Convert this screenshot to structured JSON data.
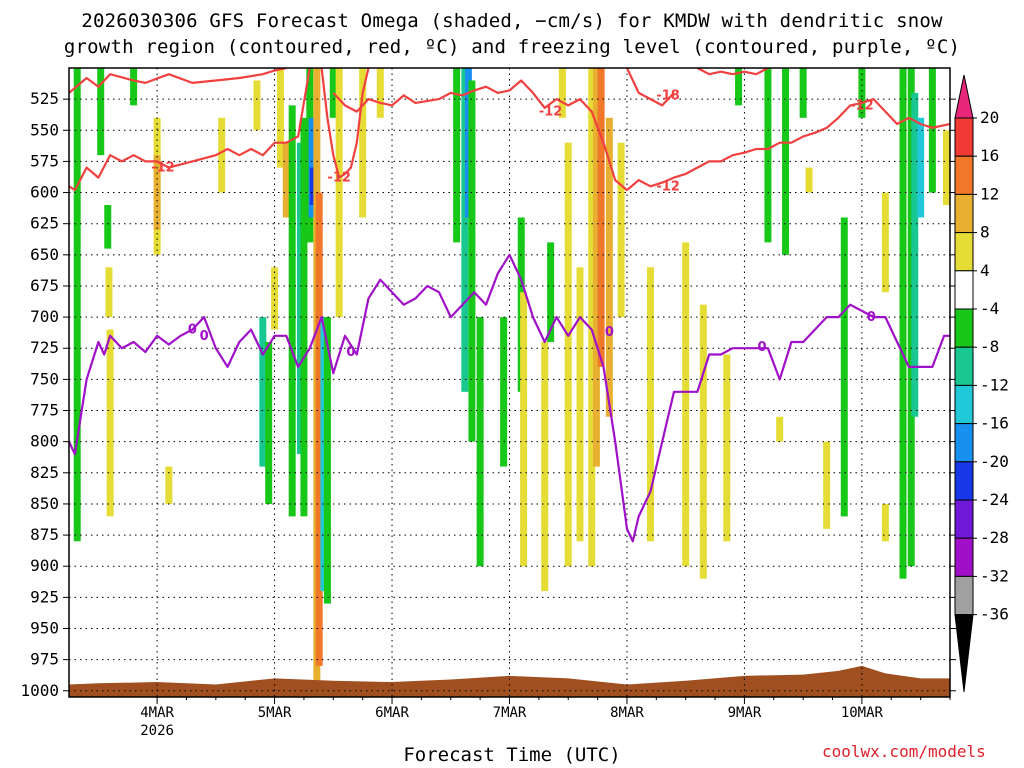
{
  "title_line1": "2026030306 GFS Forecast Omega (shaded, −cm/s) for KMDW with dendritic snow",
  "title_line2": "growth region (contoured, red, ºC) and freezing level (contoured, purple, ºC)",
  "x_axis_title": "Forecast Time (UTC)",
  "credit": "coolwx.com/models",
  "chart_data": {
    "type": "heatmap",
    "title": "2026030306 GFS Forecast Omega (shaded, −cm/s) for KMDW with dendritic snow growth region (contoured, red, ºC) and freezing level (contoured, purple, ºC)",
    "xlabel": "Forecast Time (UTC)",
    "ylabel": "",
    "x_ticks": [
      "4MAR",
      "5MAR",
      "6MAR",
      "7MAR",
      "8MAR",
      "9MAR",
      "10MAR"
    ],
    "x_tick_sublabels": {
      "4MAR": "2026"
    },
    "x_range_days": [
      3.25,
      10.75
    ],
    "y_ticks": [
      525,
      550,
      575,
      600,
      625,
      650,
      675,
      700,
      725,
      750,
      775,
      800,
      825,
      850,
      875,
      900,
      925,
      950,
      975,
      1000
    ],
    "y_range_hpa": [
      500,
      1005
    ],
    "y_reversed": true,
    "grid": true,
    "colorbar": {
      "levels": [
        20,
        16,
        12,
        8,
        4,
        -4,
        -8,
        -12,
        -16,
        -20,
        -24,
        -28,
        -32,
        -36
      ],
      "colors": [
        "#e8267a",
        "#f23a35",
        "#f07828",
        "#e8b030",
        "#e6dc36",
        "#ffffff",
        "#18c818",
        "#18c890",
        "#20c8d8",
        "#1890f0",
        "#1838e8",
        "#7018d8",
        "#a010c8",
        "#a0a0a0",
        "#000000"
      ]
    },
    "omega_cells": [
      {
        "t": 3.32,
        "p0": 500,
        "p1": 880,
        "c": "#18c818"
      },
      {
        "t": 3.52,
        "p0": 500,
        "p1": 570,
        "c": "#18c818"
      },
      {
        "t": 3.58,
        "p0": 610,
        "p1": 645,
        "c": "#18c818"
      },
      {
        "t": 3.59,
        "p0": 660,
        "p1": 700,
        "c": "#e6dc36"
      },
      {
        "t": 3.6,
        "p0": 710,
        "p1": 860,
        "c": "#e6dc36"
      },
      {
        "t": 3.8,
        "p0": 500,
        "p1": 530,
        "c": "#18c818"
      },
      {
        "t": 4.0,
        "p0": 540,
        "p1": 650,
        "c": "#e6dc36"
      },
      {
        "t": 4.0,
        "p0": 570,
        "p1": 630,
        "c": "#e8b030"
      },
      {
        "t": 4.1,
        "p0": 820,
        "p1": 850,
        "c": "#e6dc36"
      },
      {
        "t": 4.55,
        "p0": 540,
        "p1": 600,
        "c": "#e6dc36"
      },
      {
        "t": 4.85,
        "p0": 510,
        "p1": 550,
        "c": "#e6dc36"
      },
      {
        "t": 4.9,
        "p0": 700,
        "p1": 820,
        "c": "#18c890"
      },
      {
        "t": 4.95,
        "p0": 720,
        "p1": 850,
        "c": "#18c818"
      },
      {
        "t": 5.0,
        "p0": 660,
        "p1": 710,
        "c": "#e6dc36"
      },
      {
        "t": 5.05,
        "p0": 500,
        "p1": 580,
        "c": "#e6dc36"
      },
      {
        "t": 5.1,
        "p0": 560,
        "p1": 620,
        "c": "#e8b030"
      },
      {
        "t": 5.15,
        "p0": 530,
        "p1": 860,
        "c": "#18c818"
      },
      {
        "t": 5.22,
        "p0": 560,
        "p1": 810,
        "c": "#18c890"
      },
      {
        "t": 5.25,
        "p0": 540,
        "p1": 860,
        "c": "#18c818"
      },
      {
        "t": 5.3,
        "p0": 500,
        "p1": 640,
        "c": "#18c818"
      },
      {
        "t": 5.32,
        "p0": 540,
        "p1": 620,
        "c": "#1890f0"
      },
      {
        "t": 5.33,
        "p0": 580,
        "p1": 610,
        "c": "#1838e8"
      },
      {
        "t": 5.36,
        "p0": 500,
        "p1": 1000,
        "c": "#e8b030"
      },
      {
        "t": 5.38,
        "p0": 600,
        "p1": 980,
        "c": "#f07828"
      },
      {
        "t": 5.42,
        "p0": 700,
        "p1": 920,
        "c": "#20c8d8"
      },
      {
        "t": 5.45,
        "p0": 700,
        "p1": 930,
        "c": "#18c818"
      },
      {
        "t": 5.5,
        "p0": 500,
        "p1": 540,
        "c": "#18c818"
      },
      {
        "t": 5.55,
        "p0": 500,
        "p1": 700,
        "c": "#e6dc36"
      },
      {
        "t": 5.75,
        "p0": 500,
        "p1": 620,
        "c": "#e6dc36"
      },
      {
        "t": 5.9,
        "p0": 500,
        "p1": 540,
        "c": "#e6dc36"
      },
      {
        "t": 6.55,
        "p0": 500,
        "p1": 640,
        "c": "#18c818"
      },
      {
        "t": 6.62,
        "p0": 500,
        "p1": 760,
        "c": "#18c890"
      },
      {
        "t": 6.65,
        "p0": 500,
        "p1": 620,
        "c": "#1890f0"
      },
      {
        "t": 6.68,
        "p0": 510,
        "p1": 800,
        "c": "#18c818"
      },
      {
        "t": 6.75,
        "p0": 700,
        "p1": 900,
        "c": "#18c818"
      },
      {
        "t": 6.95,
        "p0": 700,
        "p1": 820,
        "c": "#18c818"
      },
      {
        "t": 7.1,
        "p0": 620,
        "p1": 760,
        "c": "#18c818"
      },
      {
        "t": 7.12,
        "p0": 680,
        "p1": 900,
        "c": "#e6dc36"
      },
      {
        "t": 7.3,
        "p0": 720,
        "p1": 920,
        "c": "#e6dc36"
      },
      {
        "t": 7.35,
        "p0": 640,
        "p1": 720,
        "c": "#18c818"
      },
      {
        "t": 7.45,
        "p0": 500,
        "p1": 540,
        "c": "#e6dc36"
      },
      {
        "t": 7.5,
        "p0": 560,
        "p1": 900,
        "c": "#e6dc36"
      },
      {
        "t": 7.6,
        "p0": 660,
        "p1": 880,
        "c": "#e6dc36"
      },
      {
        "t": 7.7,
        "p0": 500,
        "p1": 900,
        "c": "#e6dc36"
      },
      {
        "t": 7.74,
        "p0": 500,
        "p1": 820,
        "c": "#e8b030"
      },
      {
        "t": 7.78,
        "p0": 500,
        "p1": 740,
        "c": "#f07828"
      },
      {
        "t": 7.85,
        "p0": 540,
        "p1": 780,
        "c": "#e8b030"
      },
      {
        "t": 7.95,
        "p0": 560,
        "p1": 700,
        "c": "#e6dc36"
      },
      {
        "t": 8.2,
        "p0": 660,
        "p1": 880,
        "c": "#e6dc36"
      },
      {
        "t": 8.5,
        "p0": 640,
        "p1": 900,
        "c": "#e6dc36"
      },
      {
        "t": 8.65,
        "p0": 690,
        "p1": 910,
        "c": "#e6dc36"
      },
      {
        "t": 8.85,
        "p0": 730,
        "p1": 880,
        "c": "#e6dc36"
      },
      {
        "t": 8.95,
        "p0": 500,
        "p1": 530,
        "c": "#18c818"
      },
      {
        "t": 9.2,
        "p0": 500,
        "p1": 640,
        "c": "#18c818"
      },
      {
        "t": 9.35,
        "p0": 500,
        "p1": 650,
        "c": "#18c818"
      },
      {
        "t": 9.5,
        "p0": 500,
        "p1": 540,
        "c": "#18c818"
      },
      {
        "t": 9.3,
        "p0": 780,
        "p1": 800,
        "c": "#e6dc36"
      },
      {
        "t": 9.55,
        "p0": 580,
        "p1": 600,
        "c": "#e6dc36"
      },
      {
        "t": 9.7,
        "p0": 800,
        "p1": 870,
        "c": "#e6dc36"
      },
      {
        "t": 9.85,
        "p0": 620,
        "p1": 860,
        "c": "#18c818"
      },
      {
        "t": 10.0,
        "p0": 500,
        "p1": 540,
        "c": "#18c818"
      },
      {
        "t": 10.2,
        "p0": 600,
        "p1": 680,
        "c": "#e6dc36"
      },
      {
        "t": 10.2,
        "p0": 850,
        "p1": 880,
        "c": "#e6dc36"
      },
      {
        "t": 10.35,
        "p0": 500,
        "p1": 910,
        "c": "#18c818"
      },
      {
        "t": 10.42,
        "p0": 500,
        "p1": 900,
        "c": "#18c818"
      },
      {
        "t": 10.45,
        "p0": 520,
        "p1": 780,
        "c": "#18c890"
      },
      {
        "t": 10.5,
        "p0": 540,
        "p1": 620,
        "c": "#20c8d8"
      },
      {
        "t": 10.6,
        "p0": 500,
        "p1": 600,
        "c": "#18c818"
      },
      {
        "t": 10.72,
        "p0": 550,
        "p1": 610,
        "c": "#e6dc36"
      }
    ],
    "series": [
      {
        "name": "-12",
        "color": "#f04040",
        "labels": [
          {
            "t": 4.05,
            "p": 580,
            "text": "-12"
          }
        ],
        "t": [
          3.25,
          3.3,
          3.4,
          3.5,
          3.6,
          3.7,
          3.8,
          3.9,
          4.0,
          4.1,
          4.3,
          4.5,
          4.6,
          4.7,
          4.8,
          4.9,
          5.0,
          5.1,
          5.2,
          5.3
        ],
        "p": [
          595,
          598,
          580,
          588,
          570,
          575,
          570,
          575,
          575,
          580,
          575,
          570,
          565,
          570,
          565,
          570,
          560,
          560,
          555,
          500
        ]
      },
      {
        "name": "-12",
        "color": "#f04040",
        "labels": [
          {
            "t": 5.55,
            "p": 588,
            "text": "-12"
          }
        ],
        "t": [
          5.4,
          5.45,
          5.5,
          5.55,
          5.6,
          5.65,
          5.7,
          5.75,
          5.8
        ],
        "p": [
          500,
          540,
          570,
          588,
          585,
          580,
          560,
          520,
          500
        ]
      },
      {
        "name": "-12",
        "color": "#f04040",
        "labels": [],
        "t": [
          3.25,
          3.4,
          3.5,
          3.6,
          3.8,
          3.9,
          4.1,
          4.3,
          4.5,
          4.7,
          4.9,
          5.0,
          5.1
        ],
        "p": [
          520,
          508,
          515,
          505,
          510,
          512,
          505,
          512,
          510,
          508,
          505,
          502,
          500
        ]
      },
      {
        "name": "-12",
        "color": "#f04040",
        "labels": [
          {
            "t": 7.35,
            "p": 535,
            "text": "-12"
          },
          {
            "t": 8.35,
            "p": 595,
            "text": "-12"
          },
          {
            "t": 10.0,
            "p": 530,
            "text": "-12"
          }
        ],
        "t": [
          5.5,
          5.6,
          5.7,
          5.8,
          5.9,
          6.0,
          6.1,
          6.2,
          6.4,
          6.5,
          6.6,
          6.7,
          6.8,
          6.9,
          7.0,
          7.1,
          7.2,
          7.3,
          7.4,
          7.5,
          7.6,
          7.7,
          7.8,
          7.9,
          8.0,
          8.1,
          8.2,
          8.3,
          8.4,
          8.5,
          8.6,
          8.7,
          8.8,
          8.9,
          9.0,
          9.1,
          9.2,
          9.3,
          9.4,
          9.5,
          9.6,
          9.7,
          9.8,
          9.9,
          10.0,
          10.1,
          10.2,
          10.3,
          10.4,
          10.5,
          10.6,
          10.75
        ],
        "p": [
          520,
          530,
          535,
          525,
          528,
          530,
          522,
          528,
          525,
          520,
          522,
          518,
          515,
          520,
          518,
          510,
          520,
          532,
          525,
          530,
          525,
          535,
          560,
          590,
          598,
          590,
          595,
          592,
          588,
          585,
          580,
          575,
          575,
          570,
          568,
          565,
          565,
          560,
          560,
          555,
          552,
          548,
          540,
          530,
          528,
          525,
          535,
          545,
          540,
          545,
          548,
          545
        ]
      },
      {
        "name": "-18",
        "color": "#f04040",
        "labels": [
          {
            "t": 8.35,
            "p": 522,
            "text": "-18"
          }
        ],
        "t": [
          8.0,
          8.1,
          8.2,
          8.3,
          8.4
        ],
        "p": [
          500,
          520,
          525,
          530,
          520
        ]
      },
      {
        "name": "-12",
        "color": "#f04040",
        "labels": [],
        "t": [
          8.6,
          8.7,
          8.8,
          8.9,
          9.0,
          9.1,
          9.2
        ],
        "p": [
          500,
          505,
          503,
          505,
          503,
          505,
          500
        ]
      },
      {
        "name": "0",
        "color": "#a010c8",
        "labels": [
          {
            "t": 4.3,
            "p": 710,
            "text": "0"
          },
          {
            "t": 5.65,
            "p": 728,
            "text": "0"
          },
          {
            "t": 7.85,
            "p": 712,
            "text": "0"
          },
          {
            "t": 9.15,
            "p": 724,
            "text": "0"
          },
          {
            "t": 10.08,
            "p": 700,
            "text": "0"
          },
          {
            "t": 4.4,
            "p": 715,
            "text": "0"
          }
        ],
        "t": [
          3.25,
          3.3,
          3.4,
          3.5,
          3.55,
          3.6,
          3.7,
          3.8,
          3.9,
          4.0,
          4.1,
          4.2,
          4.3,
          4.4,
          4.5,
          4.6,
          4.7,
          4.8,
          4.9,
          5.0,
          5.1,
          5.2,
          5.3,
          5.4,
          5.5,
          5.6,
          5.7,
          5.8,
          5.9,
          6.0,
          6.1,
          6.2,
          6.3,
          6.4,
          6.5,
          6.6,
          6.7,
          6.8,
          6.9,
          7.0,
          7.1,
          7.2,
          7.3,
          7.4,
          7.5,
          7.6,
          7.7,
          7.8,
          7.9,
          8.0,
          8.05,
          8.1,
          8.2,
          8.3,
          8.4,
          8.5,
          8.6,
          8.7,
          8.8,
          8.9,
          9.0,
          9.1,
          9.2,
          9.3,
          9.4,
          9.5,
          9.6,
          9.7,
          9.8,
          9.9,
          10.0,
          10.1,
          10.2,
          10.3,
          10.4,
          10.5,
          10.6,
          10.7,
          10.75
        ],
        "p": [
          800,
          810,
          750,
          720,
          730,
          715,
          725,
          720,
          728,
          715,
          722,
          715,
          710,
          700,
          725,
          740,
          720,
          710,
          730,
          715,
          715,
          740,
          725,
          700,
          745,
          715,
          730,
          685,
          670,
          680,
          690,
          685,
          675,
          680,
          700,
          690,
          680,
          690,
          665,
          650,
          670,
          700,
          720,
          700,
          715,
          700,
          710,
          740,
          800,
          870,
          880,
          860,
          840,
          800,
          760,
          760,
          760,
          730,
          730,
          725,
          725,
          725,
          725,
          750,
          720,
          720,
          710,
          700,
          700,
          690,
          695,
          700,
          700,
          720,
          740,
          740,
          740,
          715,
          715
        ]
      }
    ],
    "terrain": {
      "color": "#a05020",
      "t": [
        3.25,
        3.5,
        4.0,
        4.5,
        5.0,
        5.5,
        6.0,
        6.5,
        7.0,
        7.5,
        8.0,
        8.5,
        9.0,
        9.5,
        9.8,
        10.0,
        10.2,
        10.5,
        10.75
      ],
      "p": [
        995,
        994,
        993,
        995,
        990,
        992,
        993,
        991,
        988,
        990,
        995,
        992,
        988,
        987,
        984,
        980,
        986,
        990,
        990
      ]
    }
  }
}
